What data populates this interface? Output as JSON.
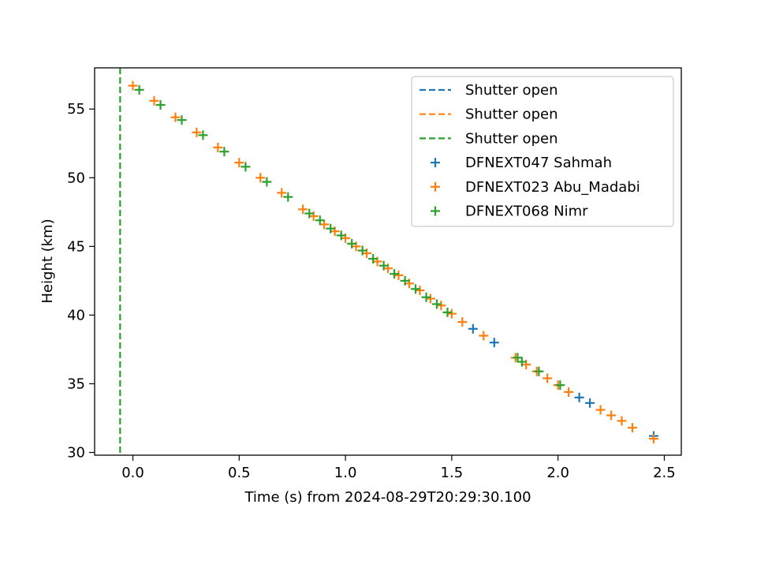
{
  "chart_data": {
    "type": "scatter",
    "title": "",
    "xlabel": "Time (s) from 2024-08-29T20:29:30.100",
    "ylabel": "Height (km)",
    "xlim": [
      -0.18,
      2.58
    ],
    "ylim": [
      29.8,
      58.0
    ],
    "xticks": [
      0.0,
      0.5,
      1.0,
      1.5,
      2.0,
      2.5
    ],
    "xtick_labels": [
      "0.0",
      "0.5",
      "1.0",
      "1.5",
      "2.0",
      "2.5"
    ],
    "yticks": [
      30,
      35,
      40,
      45,
      50,
      55
    ],
    "ytick_labels": [
      "30",
      "35",
      "40",
      "45",
      "50",
      "55"
    ],
    "grid": false,
    "legend_position": "top-right",
    "vlines": [
      {
        "name": "Shutter open",
        "x": -0.06,
        "color": "#1f77b4",
        "drawn": false
      },
      {
        "name": "Shutter open",
        "x": -0.06,
        "color": "#ff7f0e",
        "drawn": false
      },
      {
        "name": "Shutter open",
        "x": -0.06,
        "color": "#2ca02c",
        "drawn": true
      }
    ],
    "series": [
      {
        "name": "DFNEXT047 Sahmah",
        "color": "#1f77b4",
        "x": [
          1.6,
          1.7,
          2.1,
          2.15,
          2.45
        ],
        "y": [
          39.0,
          38.0,
          34.0,
          33.6,
          31.2
        ]
      },
      {
        "name": "DFNEXT023 Abu_Madabi",
        "color": "#ff7f0e",
        "x": [
          0.0,
          0.1,
          0.2,
          0.3,
          0.4,
          0.5,
          0.6,
          0.7,
          0.8,
          0.85,
          0.9,
          0.95,
          1.0,
          1.05,
          1.1,
          1.15,
          1.2,
          1.25,
          1.3,
          1.35,
          1.4,
          1.45,
          1.5,
          1.55,
          1.65,
          1.8,
          1.85,
          1.9,
          1.95,
          2.0,
          2.05,
          2.2,
          2.25,
          2.3,
          2.35,
          2.45
        ],
        "y": [
          56.7,
          55.6,
          54.4,
          53.3,
          52.2,
          51.1,
          50.0,
          48.9,
          47.7,
          47.2,
          46.6,
          46.1,
          45.6,
          45.0,
          44.5,
          43.9,
          43.4,
          42.9,
          42.3,
          41.8,
          41.2,
          40.7,
          40.1,
          39.5,
          38.5,
          36.9,
          36.4,
          35.9,
          35.4,
          34.9,
          34.4,
          33.1,
          32.7,
          32.3,
          31.8,
          31.0
        ]
      },
      {
        "name": "DFNEXT068 Nimr",
        "color": "#2ca02c",
        "x": [
          0.03,
          0.13,
          0.23,
          0.33,
          0.43,
          0.53,
          0.63,
          0.73,
          0.83,
          0.88,
          0.93,
          0.98,
          1.03,
          1.08,
          1.13,
          1.18,
          1.23,
          1.28,
          1.33,
          1.38,
          1.43,
          1.48,
          1.81,
          1.83,
          1.91,
          2.01
        ],
        "y": [
          56.4,
          55.3,
          54.2,
          53.1,
          51.9,
          50.8,
          49.7,
          48.6,
          47.4,
          46.9,
          46.3,
          45.8,
          45.2,
          44.7,
          44.1,
          43.6,
          43.0,
          42.5,
          41.9,
          41.3,
          40.8,
          40.2,
          36.9,
          36.6,
          35.9,
          34.9
        ]
      }
    ]
  }
}
